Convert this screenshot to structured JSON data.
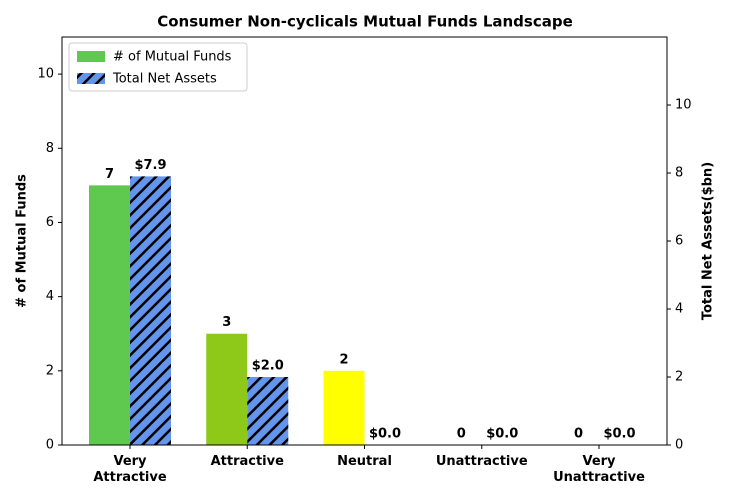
{
  "chart_data": {
    "type": "bar",
    "title": "Consumer Non-cyclicals Mutual Funds Landscape",
    "ylabel": "# of Mutual Funds",
    "y2label": "Total Net Assets($bn)",
    "categories": [
      "Very\nAttractive",
      "Attractive",
      "Neutral",
      "Unattractive",
      "Very\nUnattractive"
    ],
    "series": [
      {
        "name": "# of Mutual Funds",
        "color": "#5fc84f",
        "bar_colors": [
          "#5fc84f",
          "#8ec919",
          "#ffff00",
          "#f5a623",
          "#e0301e"
        ],
        "values": [
          7,
          3,
          2,
          0,
          0
        ]
      },
      {
        "name": "Total Net Assets",
        "color": "#6495ed",
        "hatch": true,
        "axis": "y2",
        "values": [
          7.9,
          2.0,
          0.0,
          0.0,
          0.0
        ],
        "value_labels": [
          "$7.9",
          "$2.0",
          "$0.0",
          "$0.0",
          "$0.0"
        ]
      }
    ],
    "ylim": [
      0,
      11
    ],
    "yticks": [
      0,
      2,
      4,
      6,
      8,
      10
    ],
    "y2lim": [
      0,
      12
    ],
    "y2ticks": [
      0,
      2,
      4,
      6,
      8,
      10
    ],
    "legend": "upper left",
    "grid": false
  }
}
